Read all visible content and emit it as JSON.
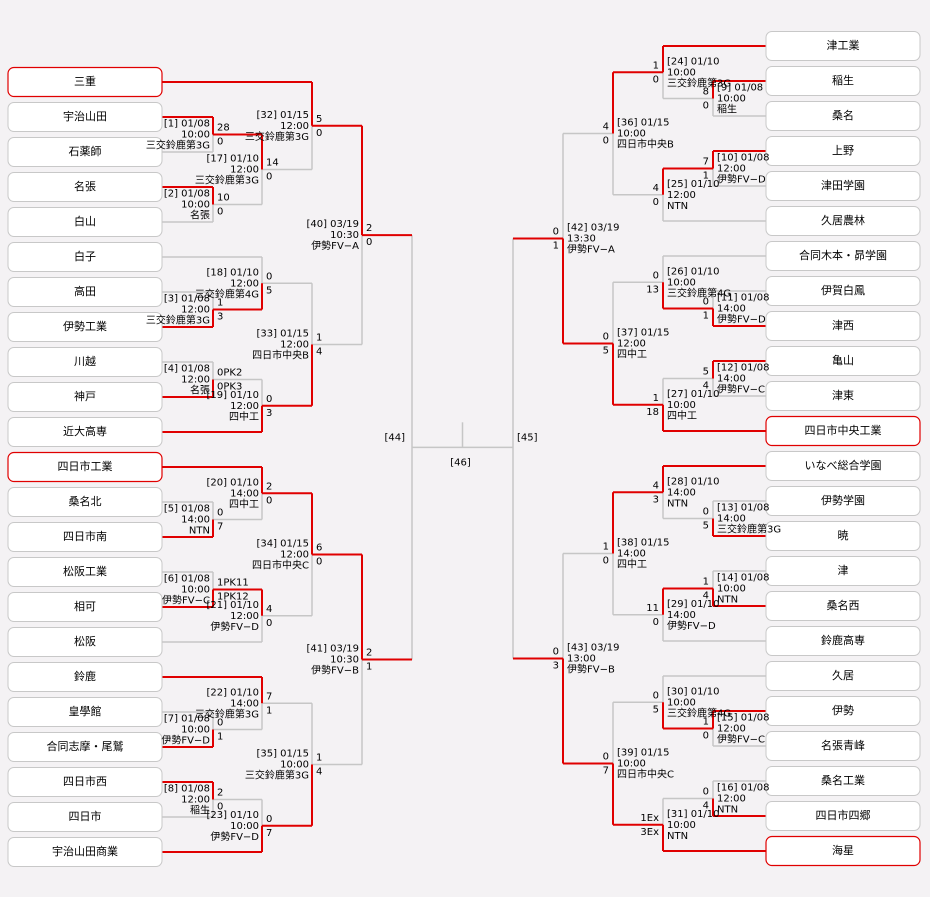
{
  "left_teams": [
    {
      "name": "三重",
      "highlight": true
    },
    {
      "name": "宇治山田"
    },
    {
      "name": "石薬師"
    },
    {
      "name": "名張"
    },
    {
      "name": "白山"
    },
    {
      "name": "白子"
    },
    {
      "name": "高田"
    },
    {
      "name": "伊勢工業"
    },
    {
      "name": "川越"
    },
    {
      "name": "神戸"
    },
    {
      "name": "近大高専"
    },
    {
      "name": "四日市工業",
      "highlight": true
    },
    {
      "name": "桑名北"
    },
    {
      "name": "四日市南"
    },
    {
      "name": "松阪工業"
    },
    {
      "name": "相可"
    },
    {
      "name": "松阪"
    },
    {
      "name": "鈴鹿"
    },
    {
      "name": "皇學館"
    },
    {
      "name": "合同志摩・尾鷲"
    },
    {
      "name": "四日市西"
    },
    {
      "name": "四日市"
    },
    {
      "name": "宇治山田商業"
    }
  ],
  "right_teams": [
    {
      "name": "津工業"
    },
    {
      "name": "稲生"
    },
    {
      "name": "桑名"
    },
    {
      "name": "上野"
    },
    {
      "name": "津田学園"
    },
    {
      "name": "久居農林"
    },
    {
      "name": "合同木本・昴学園"
    },
    {
      "name": "伊賀白鳳"
    },
    {
      "name": "津西"
    },
    {
      "name": "亀山"
    },
    {
      "name": "津東"
    },
    {
      "name": "四日市中央工業",
      "highlight": true
    },
    {
      "name": "いなべ総合学園"
    },
    {
      "name": "伊勢学園"
    },
    {
      "name": "暁"
    },
    {
      "name": "津"
    },
    {
      "name": "桑名西"
    },
    {
      "name": "鈴鹿高専"
    },
    {
      "name": "久居"
    },
    {
      "name": "伊勢"
    },
    {
      "name": "名張青峰"
    },
    {
      "name": "桑名工業"
    },
    {
      "name": "四日市四郷"
    },
    {
      "name": "海星",
      "highlight": true
    }
  ],
  "matches": [
    {
      "label": "[1] 01/08",
      "time": "10:00",
      "venue": "三交鈴鹿第3G",
      "scores": [
        "28",
        "0"
      ]
    },
    {
      "label": "[2] 01/08",
      "time": "10:00",
      "venue": "名張",
      "scores": [
        "10",
        "0"
      ]
    },
    {
      "label": "[3] 01/08",
      "time": "12:00",
      "venue": "三交鈴鹿第3G",
      "scores": [
        "1",
        "3"
      ]
    },
    {
      "label": "[4] 01/08",
      "time": "12:00",
      "venue": "名張",
      "scores": [
        "0PK2",
        "0PK3"
      ]
    },
    {
      "label": "[5] 01/08",
      "time": "14:00",
      "venue": "NTN",
      "scores": [
        "0",
        "7"
      ]
    },
    {
      "label": "[6] 01/08",
      "time": "10:00",
      "venue": "伊勢FV−C",
      "scores": [
        "1PK11",
        "1PK12"
      ]
    },
    {
      "label": "[7] 01/08",
      "time": "10:00",
      "venue": "伊勢FV−D",
      "scores": [
        "0",
        "1"
      ]
    },
    {
      "label": "[8] 01/08",
      "time": "12:00",
      "venue": "稲生",
      "scores": [
        "2",
        "0"
      ]
    },
    {
      "label": "[9] 01/08",
      "time": "10:00",
      "venue": "稲生",
      "scores": [
        "8",
        "0"
      ]
    },
    {
      "label": "[10] 01/08",
      "time": "12:00",
      "venue": "伊勢FV−D",
      "scores": [
        "7",
        "1"
      ]
    },
    {
      "label": "[11] 01/08",
      "time": "14:00",
      "venue": "伊勢FV−D",
      "scores": [
        "0",
        "1"
      ]
    },
    {
      "label": "[12] 01/08",
      "time": "14:00",
      "venue": "伊勢FV−C",
      "scores": [
        "5",
        "4"
      ]
    },
    {
      "label": "[13] 01/08",
      "time": "14:00",
      "venue": "三交鈴鹿第3G",
      "scores": [
        "0",
        "5"
      ]
    },
    {
      "label": "[14] 01/08",
      "time": "10:00",
      "venue": "NTN",
      "scores": [
        "1",
        "4"
      ]
    },
    {
      "label": "[15] 01/08",
      "time": "12:00",
      "venue": "伊勢FV−C",
      "scores": [
        "1",
        "0"
      ]
    },
    {
      "label": "[16] 01/08",
      "time": "12:00",
      "venue": "NTN",
      "scores": [
        "0",
        "4"
      ]
    },
    {
      "label": "[17] 01/10",
      "time": "12:00",
      "venue": "三交鈴鹿第3G",
      "scores": [
        "14",
        "0"
      ]
    },
    {
      "label": "[18] 01/10",
      "time": "12:00",
      "venue": "三交鈴鹿第4G",
      "scores": [
        "0",
        "5"
      ]
    },
    {
      "label": "[19] 01/10",
      "time": "12:00",
      "venue": "四中工",
      "scores": [
        "0",
        "3"
      ]
    },
    {
      "label": "[20] 01/10",
      "time": "14:00",
      "venue": "四中工",
      "scores": [
        "2",
        "0"
      ]
    },
    {
      "label": "[21] 01/10",
      "time": "12:00",
      "venue": "伊勢FV−D",
      "scores": [
        "4",
        "0"
      ]
    },
    {
      "label": "[22] 01/10",
      "time": "14:00",
      "venue": "三交鈴鹿第3G",
      "scores": [
        "7",
        "1"
      ]
    },
    {
      "label": "[23] 01/10",
      "time": "10:00",
      "venue": "伊勢FV−D",
      "scores": [
        "0",
        "7"
      ]
    },
    {
      "label": "[24] 01/10",
      "time": "10:00",
      "venue": "三交鈴鹿第3G",
      "scores": [
        "1",
        "0"
      ]
    },
    {
      "label": "[25] 01/10",
      "time": "12:00",
      "venue": "NTN",
      "scores": [
        "4",
        "0"
      ]
    },
    {
      "label": "[26] 01/10",
      "time": "10:00",
      "venue": "三交鈴鹿第4G",
      "scores": [
        "0",
        "13"
      ]
    },
    {
      "label": "[27] 01/10",
      "time": "10:00",
      "venue": "四中工",
      "scores": [
        "1",
        "18"
      ]
    },
    {
      "label": "[28] 01/10",
      "time": "14:00",
      "venue": "NTN",
      "scores": [
        "4",
        "3"
      ]
    },
    {
      "label": "[29] 01/10",
      "time": "14:00",
      "venue": "伊勢FV−D",
      "scores": [
        "11",
        "0"
      ]
    },
    {
      "label": "[30] 01/10",
      "time": "10:00",
      "venue": "三交鈴鹿第4G",
      "scores": [
        "0",
        "5"
      ]
    },
    {
      "label": "[31] 01/10",
      "time": "10:00",
      "venue": "NTN",
      "scores": [
        "1Ex",
        "3Ex"
      ]
    },
    {
      "label": "[32] 01/15",
      "time": "12:00",
      "venue": "三交鈴鹿第3G",
      "scores": [
        "5",
        "0"
      ]
    },
    {
      "label": "[33] 01/15",
      "time": "12:00",
      "venue": "四日市中央B",
      "scores": [
        "1",
        "4"
      ]
    },
    {
      "label": "[34] 01/15",
      "time": "12:00",
      "venue": "四日市中央C",
      "scores": [
        "6",
        "0"
      ]
    },
    {
      "label": "[35] 01/15",
      "time": "10:00",
      "venue": "三交鈴鹿第3G",
      "scores": [
        "1",
        "4"
      ]
    },
    {
      "label": "[36] 01/15",
      "time": "10:00",
      "venue": "四日市中央B",
      "scores": [
        "4",
        "0"
      ]
    },
    {
      "label": "[37] 01/15",
      "time": "12:00",
      "venue": "四中工",
      "scores": [
        "0",
        "5"
      ]
    },
    {
      "label": "[38] 01/15",
      "time": "14:00",
      "venue": "四中工",
      "scores": [
        "1",
        "0"
      ]
    },
    {
      "label": "[39] 01/15",
      "time": "10:00",
      "venue": "四日市中央C",
      "scores": [
        "0",
        "7"
      ]
    },
    {
      "label": "[40] 03/19",
      "time": "10:30",
      "venue": "伊勢FV−A",
      "scores": [
        "2",
        "0"
      ]
    },
    {
      "label": "[41] 03/19",
      "time": "10:30",
      "venue": "伊勢FV−B",
      "scores": [
        "2",
        "1"
      ]
    },
    {
      "label": "[42] 03/19",
      "time": "13:30",
      "venue": "伊勢FV−A",
      "scores": [
        "0",
        "1"
      ]
    },
    {
      "label": "[43] 03/19",
      "time": "13:00",
      "venue": "伊勢FV−B",
      "scores": [
        "0",
        "3"
      ]
    }
  ],
  "finals": [
    "[44]",
    "[45]",
    "[46]"
  ]
}
